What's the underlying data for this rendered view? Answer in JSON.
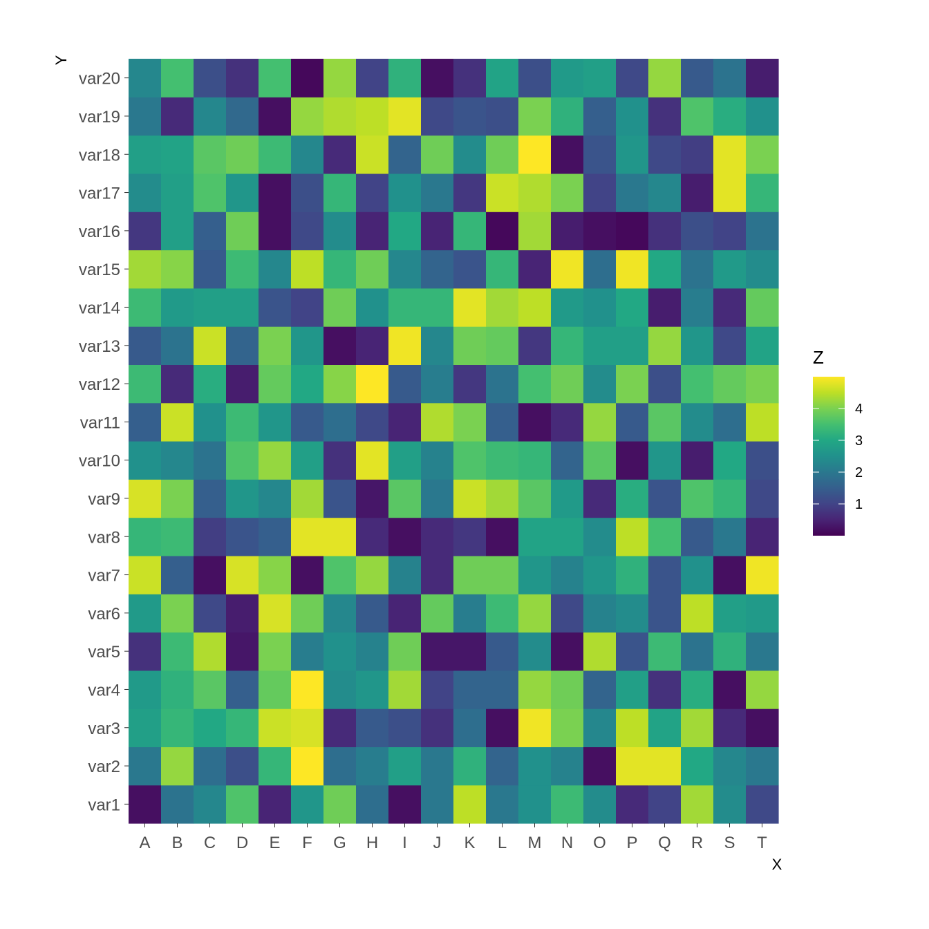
{
  "chart_data": {
    "type": "heatmap",
    "xlabel": "X",
    "ylabel": "Y",
    "x_categories": [
      "A",
      "B",
      "C",
      "D",
      "E",
      "F",
      "G",
      "H",
      "I",
      "J",
      "K",
      "L",
      "M",
      "N",
      "O",
      "P",
      "Q",
      "R",
      "S",
      "T"
    ],
    "y_categories": [
      "var1",
      "var2",
      "var3",
      "var4",
      "var5",
      "var6",
      "var7",
      "var8",
      "var9",
      "var10",
      "var11",
      "var12",
      "var13",
      "var14",
      "var15",
      "var16",
      "var17",
      "var18",
      "var19",
      "var20"
    ],
    "values": [
      [
        0.2,
        1.9,
        2.3,
        3.6,
        0.5,
        2.6,
        3.9,
        1.8,
        0.2,
        2.0,
        4.5,
        2.0,
        2.5,
        3.4,
        2.4,
        0.6,
        1.0,
        4.3,
        2.4,
        1.1
      ],
      [
        2.0,
        4.2,
        1.8,
        1.2,
        3.3,
        5.0,
        1.8,
        2.1,
        2.8,
        2.0,
        3.2,
        1.6,
        2.5,
        2.2,
        0.2,
        4.8,
        4.8,
        3.0,
        2.3,
        2.0
      ],
      [
        2.8,
        3.3,
        3.0,
        3.3,
        4.6,
        4.7,
        0.6,
        1.4,
        1.2,
        0.7,
        1.8,
        0.2,
        4.9,
        4.0,
        2.3,
        4.5,
        2.9,
        4.3,
        0.6,
        0.2
      ],
      [
        2.7,
        3.2,
        3.7,
        1.5,
        3.8,
        5.0,
        2.4,
        2.6,
        4.3,
        1.0,
        1.6,
        1.6,
        4.2,
        3.9,
        1.6,
        2.8,
        0.7,
        3.1,
        0.2,
        4.2
      ],
      [
        0.7,
        3.4,
        4.4,
        0.3,
        4.0,
        2.1,
        2.5,
        2.2,
        3.9,
        0.3,
        0.3,
        1.4,
        2.4,
        0.2,
        4.4,
        1.3,
        3.4,
        1.9,
        3.2,
        2.0
      ],
      [
        2.7,
        4.0,
        1.1,
        0.4,
        4.7,
        3.9,
        2.3,
        1.4,
        0.5,
        3.8,
        2.1,
        3.4,
        4.2,
        1.1,
        2.2,
        2.4,
        1.3,
        4.5,
        2.8,
        2.7
      ],
      [
        4.6,
        1.5,
        0.2,
        4.7,
        4.1,
        0.2,
        3.6,
        4.2,
        2.2,
        0.6,
        3.9,
        3.9,
        2.6,
        2.2,
        2.6,
        3.2,
        1.3,
        2.5,
        0.2,
        4.9
      ],
      [
        3.3,
        3.4,
        0.9,
        1.3,
        1.5,
        4.8,
        4.8,
        0.6,
        0.2,
        0.6,
        0.8,
        0.2,
        2.9,
        2.9,
        2.4,
        4.5,
        3.5,
        1.4,
        2.0,
        0.5
      ],
      [
        4.7,
        4.0,
        1.5,
        2.6,
        2.3,
        4.3,
        1.3,
        0.3,
        3.7,
        2.0,
        4.6,
        4.3,
        3.7,
        2.7,
        0.6,
        3.1,
        1.3,
        3.6,
        3.3,
        1.1
      ],
      [
        2.5,
        2.3,
        1.9,
        3.6,
        4.2,
        2.8,
        0.7,
        4.8,
        2.8,
        2.2,
        3.6,
        3.4,
        3.3,
        1.6,
        3.7,
        0.2,
        2.6,
        0.4,
        3.0,
        1.2
      ],
      [
        1.5,
        4.6,
        2.5,
        3.4,
        2.6,
        1.4,
        1.8,
        1.1,
        0.5,
        4.4,
        4.0,
        1.5,
        0.2,
        0.6,
        4.2,
        1.4,
        3.7,
        2.4,
        1.8,
        4.5
      ],
      [
        3.4,
        0.6,
        3.1,
        0.4,
        3.8,
        3.0,
        4.1,
        5.0,
        1.4,
        2.1,
        0.8,
        1.9,
        3.5,
        3.9,
        2.4,
        4.0,
        1.2,
        3.5,
        3.8,
        4.0
      ],
      [
        1.4,
        1.9,
        4.6,
        1.6,
        4.0,
        2.6,
        0.2,
        0.5,
        4.9,
        2.3,
        3.9,
        3.8,
        0.8,
        3.3,
        2.8,
        2.8,
        4.2,
        2.6,
        1.1,
        2.9
      ],
      [
        3.4,
        2.7,
        2.8,
        2.8,
        1.3,
        1.0,
        3.9,
        2.5,
        3.3,
        3.3,
        4.8,
        4.3,
        4.5,
        2.7,
        2.5,
        3.0,
        0.4,
        2.1,
        0.6,
        3.8
      ],
      [
        4.3,
        4.1,
        1.4,
        3.4,
        2.3,
        4.5,
        3.3,
        3.9,
        2.3,
        1.6,
        1.3,
        3.3,
        0.5,
        4.9,
        1.8,
        4.9,
        3.0,
        1.9,
        2.7,
        2.4
      ],
      [
        0.8,
        2.8,
        1.5,
        3.9,
        0.2,
        1.1,
        2.4,
        0.5,
        3.0,
        0.5,
        3.3,
        0.1,
        4.3,
        0.4,
        0.2,
        0.1,
        0.7,
        1.2,
        1.0,
        1.9
      ],
      [
        2.4,
        2.8,
        3.6,
        2.6,
        0.2,
        1.2,
        3.3,
        1.0,
        2.5,
        2.0,
        0.8,
        4.6,
        4.4,
        4.0,
        1.0,
        2.0,
        2.3,
        0.4,
        4.8,
        3.3
      ],
      [
        2.8,
        2.9,
        3.7,
        3.9,
        3.4,
        2.3,
        0.6,
        4.6,
        1.6,
        3.9,
        2.4,
        3.9,
        5.0,
        0.2,
        1.3,
        2.6,
        1.1,
        0.9,
        4.8,
        4.0
      ],
      [
        2.0,
        0.6,
        2.3,
        1.7,
        0.2,
        4.2,
        4.4,
        4.5,
        4.8,
        1.1,
        1.3,
        1.2,
        4.0,
        3.2,
        1.5,
        2.5,
        0.7,
        3.6,
        3.1,
        2.5
      ],
      [
        2.3,
        3.5,
        1.2,
        0.7,
        3.5,
        0.1,
        4.2,
        1.0,
        3.2,
        0.2,
        0.7,
        2.9,
        1.2,
        2.7,
        2.8,
        1.1,
        4.2,
        1.4,
        1.9,
        0.4
      ]
    ],
    "color_scale": "viridis",
    "color_range": [
      0,
      5
    ],
    "legend_title": "Z",
    "legend_breaks": [
      1,
      2,
      3,
      4
    ],
    "legend_position": "right",
    "grid": false,
    "colors": {
      "tick_text": "#4d4d4d",
      "tick_mark": "#333333",
      "title_text": "#000000",
      "background": "#ffffff"
    }
  }
}
